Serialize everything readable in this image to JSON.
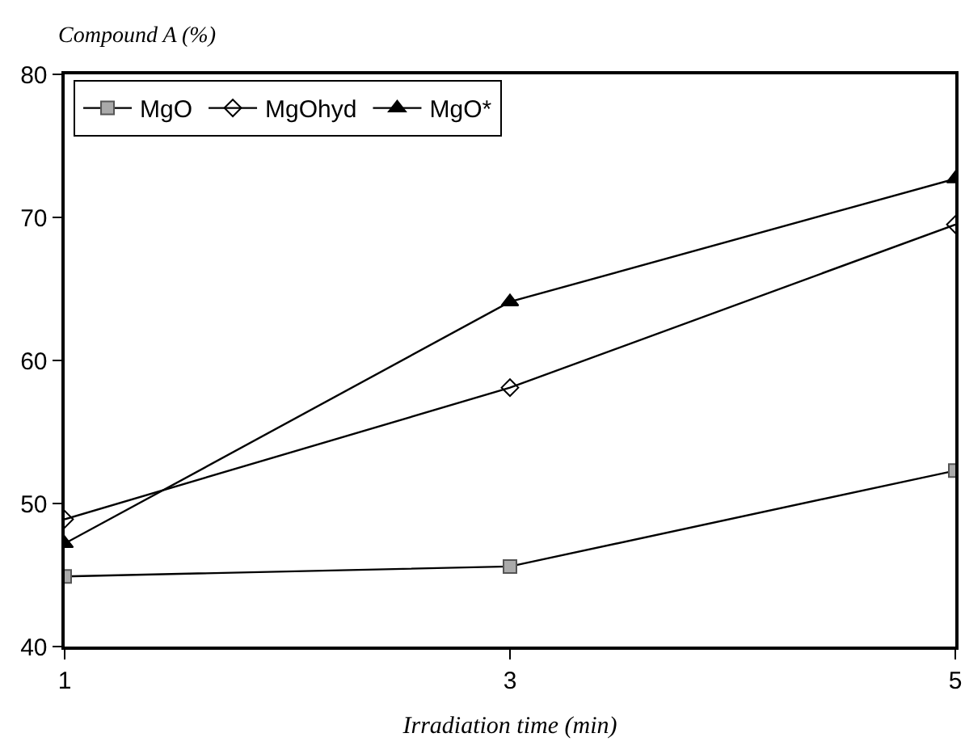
{
  "chart_data": {
    "type": "line",
    "ylabel": "Compound A (%)",
    "xlabel": "Irradiation time (min)",
    "x": [
      1,
      3,
      5
    ],
    "xlim": [
      1,
      5
    ],
    "xticks": [
      1,
      3,
      5
    ],
    "ylim": [
      40,
      80
    ],
    "yticks": [
      40,
      50,
      60,
      70,
      80
    ],
    "grid": false,
    "legend": "top left",
    "series": [
      {
        "name": "MgO",
        "color": "#555555",
        "marker": "square",
        "values": [
          44.9,
          45.6,
          52.3
        ]
      },
      {
        "name": "MgOhyd",
        "color": "#000000",
        "marker": "diamond",
        "values": [
          48.9,
          58.1,
          69.5
        ]
      },
      {
        "name": "MgO*",
        "color": "#000000",
        "marker": "triangle",
        "values": [
          47.2,
          64.1,
          72.7
        ]
      }
    ]
  }
}
